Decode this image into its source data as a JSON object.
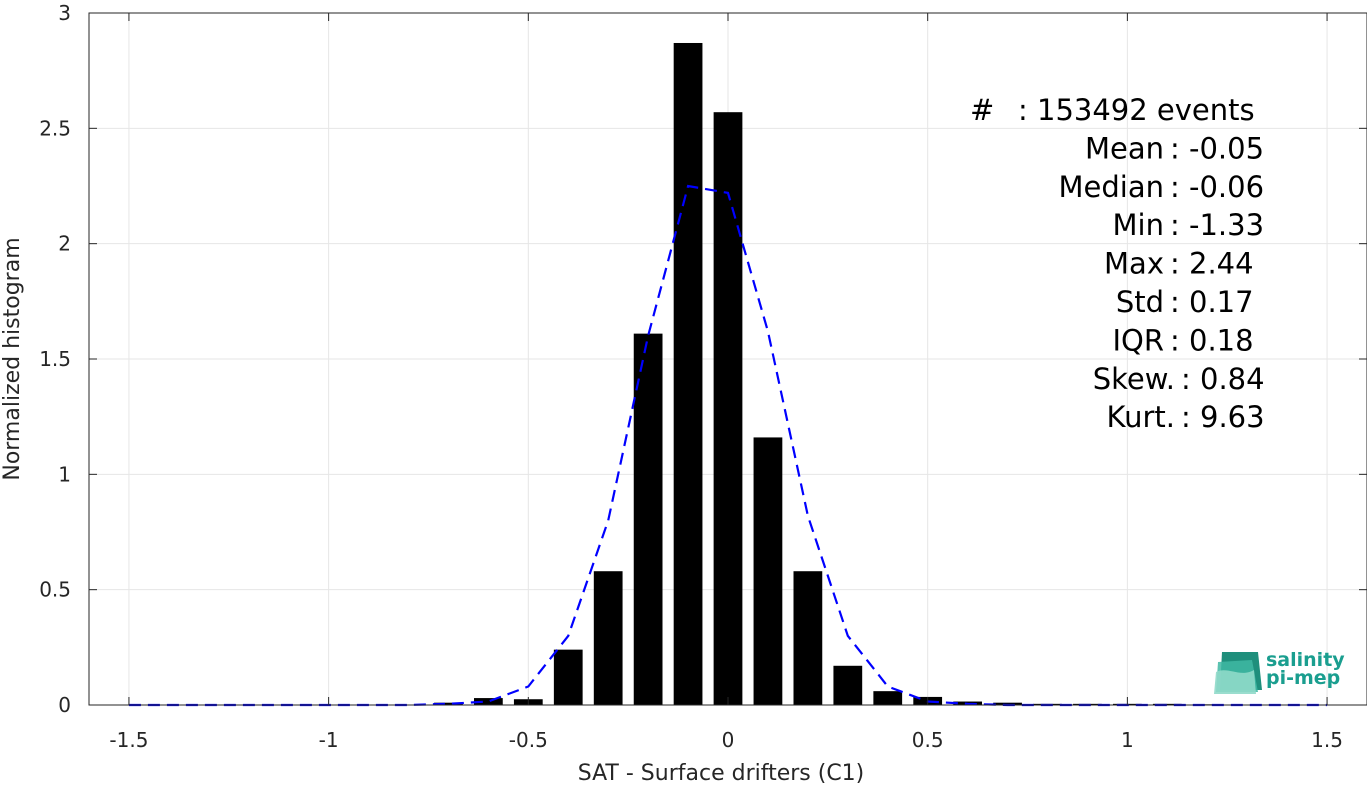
{
  "chart_data": {
    "type": "bar",
    "title": "",
    "xlabel": "SAT - Surface drifters (C1)",
    "ylabel": "Normalized histogram",
    "xlim": [
      -1.6,
      1.6
    ],
    "ylim": [
      0,
      3
    ],
    "xticks": [
      -1.5,
      -1,
      -0.5,
      0,
      0.5,
      1,
      1.5
    ],
    "xtick_labels": [
      "-1.5",
      "-1",
      "-0.5",
      "0",
      "0.5",
      "1",
      "1.5"
    ],
    "yticks": [
      0,
      0.5,
      1,
      1.5,
      2,
      2.5,
      3
    ],
    "ytick_labels": [
      "0",
      "0.5",
      "1",
      "1.5",
      "2",
      "2.5",
      "3"
    ],
    "grid": true,
    "bar_color": "#000000",
    "bins": {
      "x": [
        -0.7,
        -0.6,
        -0.5,
        -0.4,
        -0.3,
        -0.2,
        -0.1,
        0.0,
        0.1,
        0.2,
        0.3,
        0.4,
        0.5,
        0.6,
        0.7,
        0.8,
        0.9,
        1.0,
        1.1,
        1.2,
        1.3,
        1.4,
        1.5
      ],
      "values": [
        0.01,
        0.03,
        0.025,
        0.24,
        0.58,
        1.61,
        2.87,
        2.57,
        1.16,
        0.58,
        0.17,
        0.06,
        0.035,
        0.015,
        0.01,
        0.005,
        0.005,
        0.005,
        0.005,
        0.003,
        0.002,
        0.002,
        0.002
      ]
    },
    "series": [
      {
        "style": "dashed",
        "color": "#0000ff",
        "x": [
          -1.5,
          -1.4,
          -1.3,
          -1.2,
          -1.1,
          -1.0,
          -0.9,
          -0.8,
          -0.7,
          -0.6,
          -0.5,
          -0.4,
          -0.3,
          -0.2,
          -0.1,
          0.0,
          0.1,
          0.2,
          0.3,
          0.4,
          0.5,
          0.6,
          0.7,
          0.8,
          0.9,
          1.0,
          1.1,
          1.2,
          1.3,
          1.4,
          1.5
        ],
        "y": [
          0,
          0,
          0,
          0,
          0,
          0,
          0,
          0,
          0.005,
          0.015,
          0.08,
          0.3,
          0.8,
          1.6,
          2.25,
          2.22,
          1.62,
          0.82,
          0.3,
          0.08,
          0.015,
          0.005,
          0,
          0,
          0,
          0,
          0,
          0,
          0,
          0,
          0
        ]
      }
    ],
    "stats": [
      {
        "label": "#  ",
        "value": "153492 events"
      },
      {
        "label": "Mean",
        "value": "-0.05"
      },
      {
        "label": "Median",
        "value": "-0.06"
      },
      {
        "label": "Min",
        "value": "-1.33"
      },
      {
        "label": "Max",
        "value": "2.44"
      },
      {
        "label": "Std",
        "value": "0.17"
      },
      {
        "label": "IQR",
        "value": "0.18"
      },
      {
        "label": "Skew.",
        "value": "0.84"
      },
      {
        "label": "Kurt.",
        "value": "9.63"
      }
    ]
  },
  "logo": {
    "line1": "salinity",
    "line2": "pi-mep",
    "color": "#1a9e8f"
  }
}
